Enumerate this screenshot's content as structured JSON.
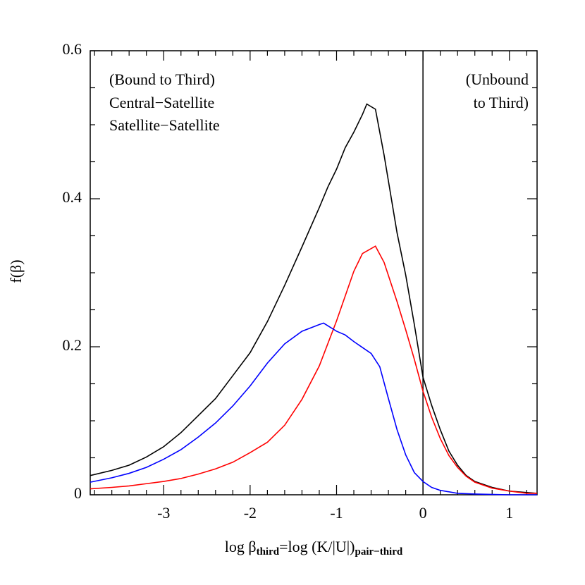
{
  "chart_data": {
    "type": "line",
    "xlabel": [
      {
        "text": "log β"
      },
      {
        "text": "third",
        "sub": true
      },
      {
        "text": "=log (K/|U|)"
      },
      {
        "text": "pair−third",
        "sub": true
      }
    ],
    "ylabel": "f(β)",
    "xlim": [
      -3.85,
      1.32
    ],
    "ylim": [
      0,
      0.6
    ],
    "xticks": [
      -3,
      -2,
      -1,
      0,
      1
    ],
    "yticks": [
      0,
      0.2,
      0.4,
      0.6
    ],
    "xminorticks": [
      -3.8,
      -3.6,
      -3.4,
      -3.2,
      -2.8,
      -2.6,
      -2.4,
      -2.2,
      -1.8,
      -1.6,
      -1.4,
      -1.2,
      -0.8,
      -0.6,
      -0.4,
      -0.2,
      0.2,
      0.4,
      0.6,
      0.8,
      1.2
    ],
    "yminorticks": [
      0.05,
      0.1,
      0.15,
      0.25,
      0.3,
      0.35,
      0.45,
      0.5,
      0.55
    ],
    "vline": 0,
    "legend": "upper left",
    "annotations": [
      "(Bound to Third)",
      "(Unbound",
      "to Third)"
    ],
    "series": [
      {
        "color": "#000000",
        "x": [
          -3.85,
          -3.6,
          -3.4,
          -3.2,
          -3.0,
          -2.8,
          -2.6,
          -2.4,
          -2.2,
          -2.0,
          -1.8,
          -1.6,
          -1.4,
          -1.2,
          -1.1,
          -1.0,
          -0.9,
          -0.8,
          -0.7,
          -0.65,
          -0.55,
          -0.45,
          -0.3,
          -0.2,
          -0.1,
          0,
          0.1,
          0.2,
          0.3,
          0.4,
          0.5,
          0.6,
          0.8,
          1.0,
          1.2,
          1.32
        ],
        "values": [
          0.026,
          0.033,
          0.04,
          0.051,
          0.065,
          0.084,
          0.107,
          0.13,
          0.161,
          0.192,
          0.234,
          0.283,
          0.335,
          0.388,
          0.416,
          0.44,
          0.469,
          0.49,
          0.514,
          0.528,
          0.521,
          0.459,
          0.354,
          0.297,
          0.23,
          0.159,
          0.121,
          0.088,
          0.059,
          0.04,
          0.026,
          0.018,
          0.01,
          0.005,
          0.003,
          0.002
        ]
      },
      {
        "name": "Central−Satellite",
        "color": "#ff0000",
        "x": [
          -3.85,
          -3.6,
          -3.4,
          -3.2,
          -3.0,
          -2.8,
          -2.6,
          -2.4,
          -2.2,
          -2.0,
          -1.8,
          -1.6,
          -1.4,
          -1.2,
          -1.0,
          -0.8,
          -0.7,
          -0.55,
          -0.45,
          -0.3,
          -0.2,
          -0.1,
          0,
          0.1,
          0.2,
          0.3,
          0.4,
          0.5,
          0.6,
          0.8,
          1.0,
          1.2,
          1.32
        ],
        "values": [
          0.008,
          0.01,
          0.012,
          0.015,
          0.018,
          0.022,
          0.028,
          0.035,
          0.044,
          0.057,
          0.071,
          0.094,
          0.129,
          0.174,
          0.235,
          0.302,
          0.326,
          0.336,
          0.314,
          0.261,
          0.223,
          0.183,
          0.14,
          0.105,
          0.076,
          0.053,
          0.037,
          0.025,
          0.017,
          0.009,
          0.005,
          0.002,
          0.002
        ]
      },
      {
        "name": "Satellite−Satellite",
        "color": "#0000ff",
        "x": [
          -3.85,
          -3.6,
          -3.4,
          -3.2,
          -3.0,
          -2.8,
          -2.6,
          -2.4,
          -2.2,
          -2.0,
          -1.8,
          -1.6,
          -1.4,
          -1.2,
          -1.15,
          -1.0,
          -0.9,
          -0.8,
          -0.7,
          -0.6,
          -0.5,
          -0.4,
          -0.3,
          -0.2,
          -0.1,
          0,
          0.1,
          0.2,
          0.4,
          0.6,
          1.0,
          1.32
        ],
        "values": [
          0.017,
          0.023,
          0.029,
          0.037,
          0.048,
          0.061,
          0.078,
          0.097,
          0.12,
          0.147,
          0.178,
          0.204,
          0.221,
          0.23,
          0.232,
          0.221,
          0.216,
          0.207,
          0.199,
          0.191,
          0.173,
          0.13,
          0.088,
          0.054,
          0.03,
          0.018,
          0.01,
          0.006,
          0.002,
          0.001,
          0,
          0
        ]
      }
    ]
  }
}
